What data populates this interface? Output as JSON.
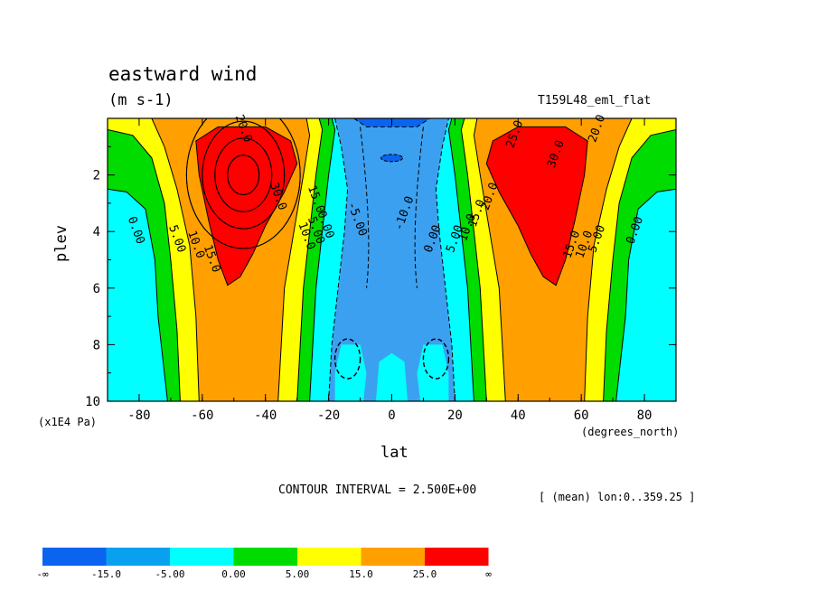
{
  "chart_data": {
    "type": "contour",
    "title": "eastward wind",
    "units": "(m s-1)",
    "subtitle": "T159L48_eml_flat",
    "xlabel": "lat",
    "xunits": "(degrees_north)",
    "ylabel": "plev",
    "yunits": "(x1E4 Pa)",
    "xlim": [
      -90,
      90
    ],
    "ylim": [
      10,
      0
    ],
    "x_ticks": [
      "-80",
      "-60",
      "-40",
      "-20",
      "0",
      "20",
      "40",
      "60",
      "80"
    ],
    "x_tick_values": [
      -80,
      -60,
      -40,
      -20,
      0,
      20,
      40,
      60,
      80
    ],
    "y_ticks": [
      "2",
      "4",
      "6",
      "8",
      "10"
    ],
    "y_tick_values": [
      2,
      4,
      6,
      8,
      10
    ],
    "contour_interval_text": "CONTOUR INTERVAL = 2.500E+00",
    "region_text": "[ (mean) lon:0..359.25 ]",
    "jets": [
      {
        "hemisphere": "south",
        "lat": -47,
        "plev": 2.0,
        "max_value": 30.0
      },
      {
        "hemisphere": "north",
        "lat": 47,
        "plev": 2.0,
        "max_value": 30.0
      }
    ],
    "contour_labels": [
      {
        "text": "0.00",
        "x": -82,
        "y": 4.0
      },
      {
        "text": "5.00",
        "x": -69,
        "y": 4.3
      },
      {
        "text": "10.0",
        "x": -63,
        "y": 4.5
      },
      {
        "text": "15.0",
        "x": -58,
        "y": 5.0
      },
      {
        "text": "20.0",
        "x": -48,
        "y": 0.4
      },
      {
        "text": "30.0",
        "x": -37,
        "y": 2.8
      },
      {
        "text": "15.0",
        "x": -25,
        "y": 2.9
      },
      {
        "text": "10.0",
        "x": -28,
        "y": 4.2
      },
      {
        "text": "5.00",
        "x": -25,
        "y": 4.0
      },
      {
        "text": "0.00",
        "x": -22,
        "y": 3.8
      },
      {
        "text": "-5.00",
        "x": -12,
        "y": 3.6
      },
      {
        "text": "-10.0",
        "x": 5,
        "y": 3.4
      },
      {
        "text": "0.00",
        "x": 14,
        "y": 4.3
      },
      {
        "text": "5.00",
        "x": 21,
        "y": 4.3
      },
      {
        "text": "10.0",
        "x": 25,
        "y": 3.9
      },
      {
        "text": "15.0",
        "x": 28,
        "y": 3.4
      },
      {
        "text": "20.0",
        "x": 32,
        "y": 2.8
      },
      {
        "text": "25.0",
        "x": 40,
        "y": 0.6
      },
      {
        "text": "30.0",
        "x": 53,
        "y": 1.3
      },
      {
        "text": "20.0",
        "x": 66,
        "y": 0.4
      },
      {
        "text": "15.0",
        "x": 58,
        "y": 4.5
      },
      {
        "text": "10.0",
        "x": 62,
        "y": 4.5
      },
      {
        "text": "5.00",
        "x": 66,
        "y": 4.3
      },
      {
        "text": "0.00",
        "x": 78,
        "y": 4.0
      }
    ],
    "colorbar": {
      "boundaries": [
        "-∞",
        "-15.0",
        "-5.00",
        "0.00",
        "5.00",
        "15.0",
        "25.0",
        "∞"
      ],
      "colors": [
        "#0a64f0",
        "#0aa0f0",
        "#00ffff",
        "#00dc00",
        "#ffff00",
        "#ffa000",
        "#ff0000"
      ]
    },
    "fill_colors": {
      "neg_strong": "#0a64f0",
      "neg": "#3ca0f0",
      "neg_weak": "#00ffff",
      "pos_weak": "#00dc00",
      "pos": "#ffff00",
      "pos_strong": "#ffa000",
      "pos_max": "#ff0000"
    }
  }
}
